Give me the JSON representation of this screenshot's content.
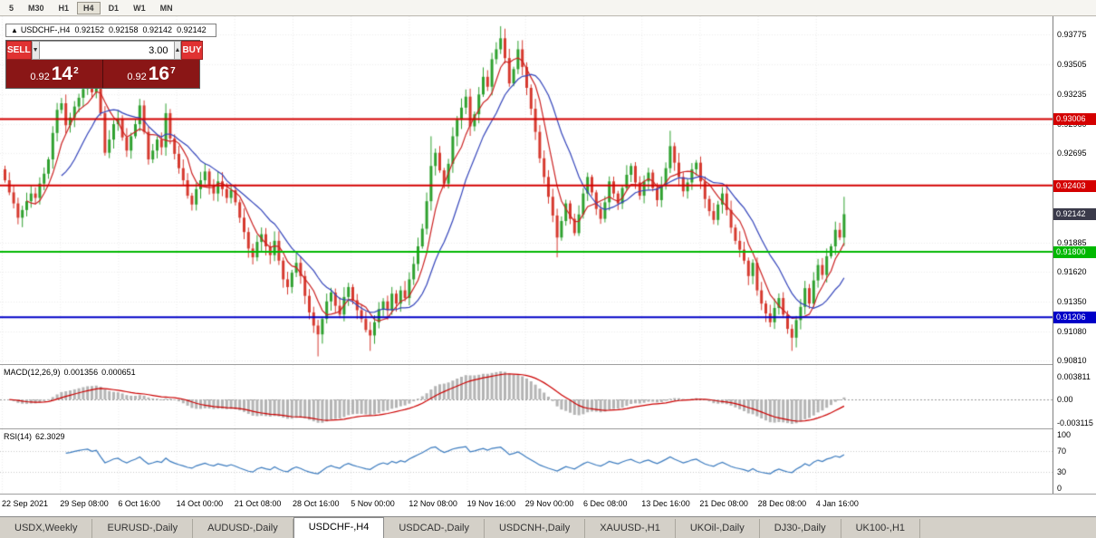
{
  "toolbar": {
    "timeframes": [
      {
        "label": "5",
        "active": false
      },
      {
        "label": "M30",
        "active": false
      },
      {
        "label": "H1",
        "active": false
      },
      {
        "label": "H4",
        "active": true
      },
      {
        "label": "D1",
        "active": false
      },
      {
        "label": "W1",
        "active": false
      },
      {
        "label": "MN",
        "active": false
      }
    ]
  },
  "chart_header": {
    "toggle_icon": "▲",
    "symbol": "USDCHF-,H4",
    "open": "0.92152",
    "high": "0.92158",
    "low": "0.92142",
    "close": "0.92142"
  },
  "trade_panel": {
    "sell_label": "SELL",
    "buy_label": "BUY",
    "lot_value": "3.00",
    "lot_decrease_icon": "▼",
    "lot_increase_icon": "▲",
    "sell_price": {
      "base": "0.92",
      "big": "14",
      "sup": "2"
    },
    "buy_price": {
      "base": "0.92",
      "big": "16",
      "sup": "7"
    },
    "button_color": "#e03232",
    "price_bg": "#8a1616"
  },
  "price_axis": {
    "ticks": [
      "0.93775",
      "0.93505",
      "0.93235",
      "0.92960",
      "0.92695",
      "0.91885",
      "0.91620",
      "0.91350",
      "0.91080",
      "0.90810"
    ]
  },
  "macd_pane": {
    "name": "MACD(12,26,9)",
    "value_main": "0.001356",
    "value_signal": "0.000651",
    "axis": [
      {
        "label": "0.003811",
        "value": 0.003811
      },
      {
        "label": "0.00",
        "value": 0
      },
      {
        "label": "-0.003115",
        "value": -0.003115
      }
    ]
  },
  "rsi_pane": {
    "name": "RSI(14)",
    "value": "62.3029",
    "axis": [
      {
        "label": "100",
        "value": 100
      },
      {
        "label": "70",
        "value": 70
      },
      {
        "label": "30",
        "value": 30
      },
      {
        "label": "0",
        "value": 0
      }
    ]
  },
  "time_axis": {
    "labels": [
      "22 Sep 2021",
      "29 Sep 08:00",
      "6 Oct 16:00",
      "14 Oct 00:00",
      "21 Oct 08:00",
      "28 Oct 16:00",
      "5 Nov 00:00",
      "12 Nov 08:00",
      "19 Nov 16:00",
      "29 Nov 00:00",
      "6 Dec 08:00",
      "13 Dec 16:00",
      "21 Dec 08:00",
      "28 Dec 08:00",
      "4 Jan 16:00"
    ]
  },
  "tabs": [
    {
      "label": "USDX,Weekly",
      "active": false
    },
    {
      "label": "EURUSD-,Daily",
      "active": false
    },
    {
      "label": "AUDUSD-,Daily",
      "active": false
    },
    {
      "label": "USDCHF-,H4",
      "active": true
    },
    {
      "label": "USDCAD-,Daily",
      "active": false
    },
    {
      "label": "USDCNH-,Daily",
      "active": false
    },
    {
      "label": "XAUUSD-,H1",
      "active": false
    },
    {
      "label": "UKOil-,Daily",
      "active": false
    },
    {
      "label": "DJ30-,Daily",
      "active": false
    },
    {
      "label": "UK100-,H1",
      "active": false
    }
  ],
  "chart_data": {
    "type": "candlestick",
    "symbol": "USDCHF",
    "timeframe": "H4",
    "title": "USDCHF-,H4",
    "ylim": [
      0.9078,
      0.9394
    ],
    "first_open": 0.9255,
    "closes": [
      0.9245,
      0.9234,
      0.9224,
      0.9211,
      0.9218,
      0.9226,
      0.9233,
      0.9229,
      0.9242,
      0.9251,
      0.9264,
      0.9288,
      0.9309,
      0.9315,
      0.9295,
      0.9302,
      0.9312,
      0.932,
      0.9328,
      0.9333,
      0.9325,
      0.9334,
      0.9306,
      0.927,
      0.9282,
      0.9296,
      0.9301,
      0.9284,
      0.9272,
      0.9285,
      0.9296,
      0.9313,
      0.9289,
      0.9264,
      0.9272,
      0.9282,
      0.9275,
      0.9306,
      0.9283,
      0.9269,
      0.9256,
      0.9245,
      0.9231,
      0.9223,
      0.9237,
      0.9245,
      0.9253,
      0.9241,
      0.9233,
      0.9244,
      0.9237,
      0.9229,
      0.9236,
      0.9225,
      0.9211,
      0.9198,
      0.9183,
      0.9175,
      0.9189,
      0.9196,
      0.9185,
      0.9177,
      0.919,
      0.9172,
      0.9155,
      0.9148,
      0.9161,
      0.917,
      0.9158,
      0.914,
      0.9125,
      0.9113,
      0.9105,
      0.9119,
      0.9135,
      0.9143,
      0.9131,
      0.9123,
      0.9139,
      0.9148,
      0.9136,
      0.9127,
      0.9119,
      0.9109,
      0.9104,
      0.9116,
      0.9128,
      0.9135,
      0.9127,
      0.9142,
      0.9133,
      0.9145,
      0.9138,
      0.9155,
      0.9169,
      0.9185,
      0.9201,
      0.9226,
      0.9258,
      0.927,
      0.9254,
      0.9242,
      0.926,
      0.9285,
      0.93,
      0.9311,
      0.9321,
      0.9294,
      0.9305,
      0.9323,
      0.9339,
      0.933,
      0.9355,
      0.9364,
      0.9374,
      0.9356,
      0.9333,
      0.9346,
      0.9364,
      0.9348,
      0.9329,
      0.931,
      0.9289,
      0.9265,
      0.9248,
      0.923,
      0.9213,
      0.9193,
      0.9208,
      0.9224,
      0.921,
      0.9197,
      0.9214,
      0.9233,
      0.9248,
      0.9234,
      0.9219,
      0.921,
      0.9225,
      0.9244,
      0.9233,
      0.9224,
      0.9238,
      0.925,
      0.9258,
      0.9243,
      0.9231,
      0.9244,
      0.9252,
      0.9238,
      0.9227,
      0.924,
      0.9256,
      0.9276,
      0.9261,
      0.9248,
      0.9235,
      0.9243,
      0.9255,
      0.9261,
      0.9244,
      0.9228,
      0.9217,
      0.9209,
      0.9223,
      0.9233,
      0.9218,
      0.9202,
      0.919,
      0.9182,
      0.9172,
      0.9158,
      0.917,
      0.9145,
      0.9133,
      0.9124,
      0.9116,
      0.9129,
      0.9138,
      0.9123,
      0.911,
      0.9102,
      0.9118,
      0.913,
      0.9147,
      0.9133,
      0.9154,
      0.9168,
      0.9159,
      0.9176,
      0.9185,
      0.92,
      0.9193,
      0.92142
    ],
    "wick_events": [
      {
        "i": 3,
        "low": 0.9205
      },
      {
        "i": 19,
        "high": 0.9344
      },
      {
        "i": 72,
        "low": 0.9085
      },
      {
        "i": 84,
        "low": 0.909
      },
      {
        "i": 98,
        "high": 0.9285
      },
      {
        "i": 114,
        "high": 0.9385
      },
      {
        "i": 127,
        "low": 0.9175
      },
      {
        "i": 153,
        "high": 0.929
      },
      {
        "i": 181,
        "low": 0.909
      },
      {
        "i": 193,
        "high": 0.923
      }
    ],
    "levels": [
      {
        "price": 0.93006,
        "label": "0.93006",
        "color": "#d40000",
        "line": true
      },
      {
        "price": 0.92403,
        "label": "0.92403",
        "color": "#d40000",
        "line": true
      },
      {
        "price": 0.92142,
        "label": "0.92142",
        "color": "#3a3a4a",
        "line": false
      },
      {
        "price": 0.918,
        "label": "0.91800",
        "color": "#00b800",
        "line": true
      },
      {
        "price": 0.91206,
        "label": "0.91206",
        "color": "#0000c8",
        "line": true
      }
    ],
    "moving_averages": [
      {
        "period": 6,
        "color": "#cc2222"
      },
      {
        "period": 14,
        "color": "#3344bb"
      }
    ],
    "indicators": {
      "macd": {
        "fast": 12,
        "slow": 26,
        "signal": 9,
        "hist_color": "#b4b4b4",
        "signal_color": "#cc0000"
      },
      "rsi": {
        "period": 14,
        "color": "#3b7bbf",
        "levels": [
          30,
          70
        ]
      }
    },
    "colors": {
      "up": "#2fa12f",
      "down": "#d63a2f",
      "grid": "#ececec",
      "background": "#ffffff"
    }
  }
}
